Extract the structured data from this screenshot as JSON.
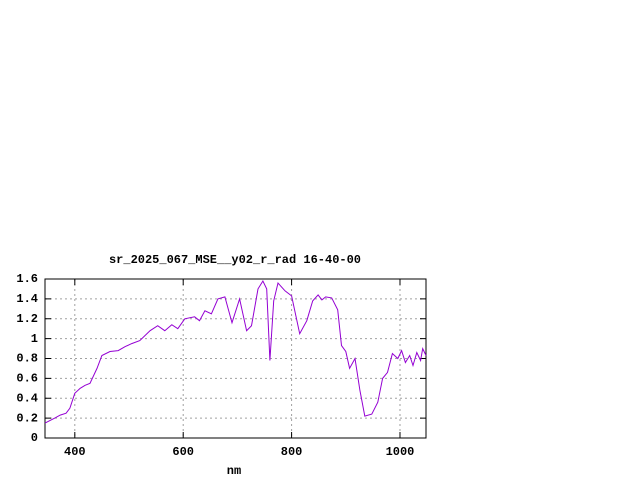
{
  "chart_data": {
    "type": "line",
    "title": "sr_2025_067_MSE__y02_r_rad 16-40-00",
    "x_label": "nm",
    "x": [
      345,
      363,
      373,
      384,
      391,
      400,
      410,
      419,
      428,
      441,
      450,
      465,
      480,
      493,
      505,
      520,
      539,
      553,
      566,
      579,
      590,
      603,
      621,
      630,
      640,
      652,
      664,
      677,
      690,
      704,
      717,
      726,
      738,
      747,
      754,
      760,
      767,
      775,
      788,
      800,
      815,
      828,
      839,
      849,
      856,
      863,
      874,
      885,
      892,
      900,
      907,
      917,
      926,
      935,
      948,
      959,
      968,
      977,
      986,
      996,
      1003,
      1010,
      1018,
      1024,
      1031,
      1038,
      1042,
      1048
    ],
    "values": [
      0.15,
      0.2,
      0.23,
      0.25,
      0.3,
      0.45,
      0.5,
      0.53,
      0.55,
      0.7,
      0.83,
      0.87,
      0.88,
      0.92,
      0.95,
      0.98,
      1.08,
      1.13,
      1.08,
      1.14,
      1.1,
      1.2,
      1.22,
      1.18,
      1.28,
      1.25,
      1.4,
      1.42,
      1.16,
      1.4,
      1.08,
      1.13,
      1.5,
      1.58,
      1.5,
      0.78,
      1.38,
      1.56,
      1.48,
      1.43,
      1.05,
      1.18,
      1.38,
      1.44,
      1.39,
      1.42,
      1.41,
      1.29,
      0.93,
      0.87,
      0.7,
      0.8,
      0.48,
      0.22,
      0.24,
      0.36,
      0.6,
      0.66,
      0.85,
      0.8,
      0.88,
      0.76,
      0.83,
      0.73,
      0.86,
      0.78,
      0.9,
      0.83
    ],
    "color": "#9400d3",
    "xlim": [
      345,
      1048
    ],
    "xticks": [
      400,
      600,
      800,
      1000
    ],
    "ylim": [
      0,
      1.6
    ],
    "yticks": [
      0,
      0.2,
      0.4,
      0.6,
      0.8,
      1,
      1.2,
      1.4,
      1.6
    ],
    "grid": true
  }
}
